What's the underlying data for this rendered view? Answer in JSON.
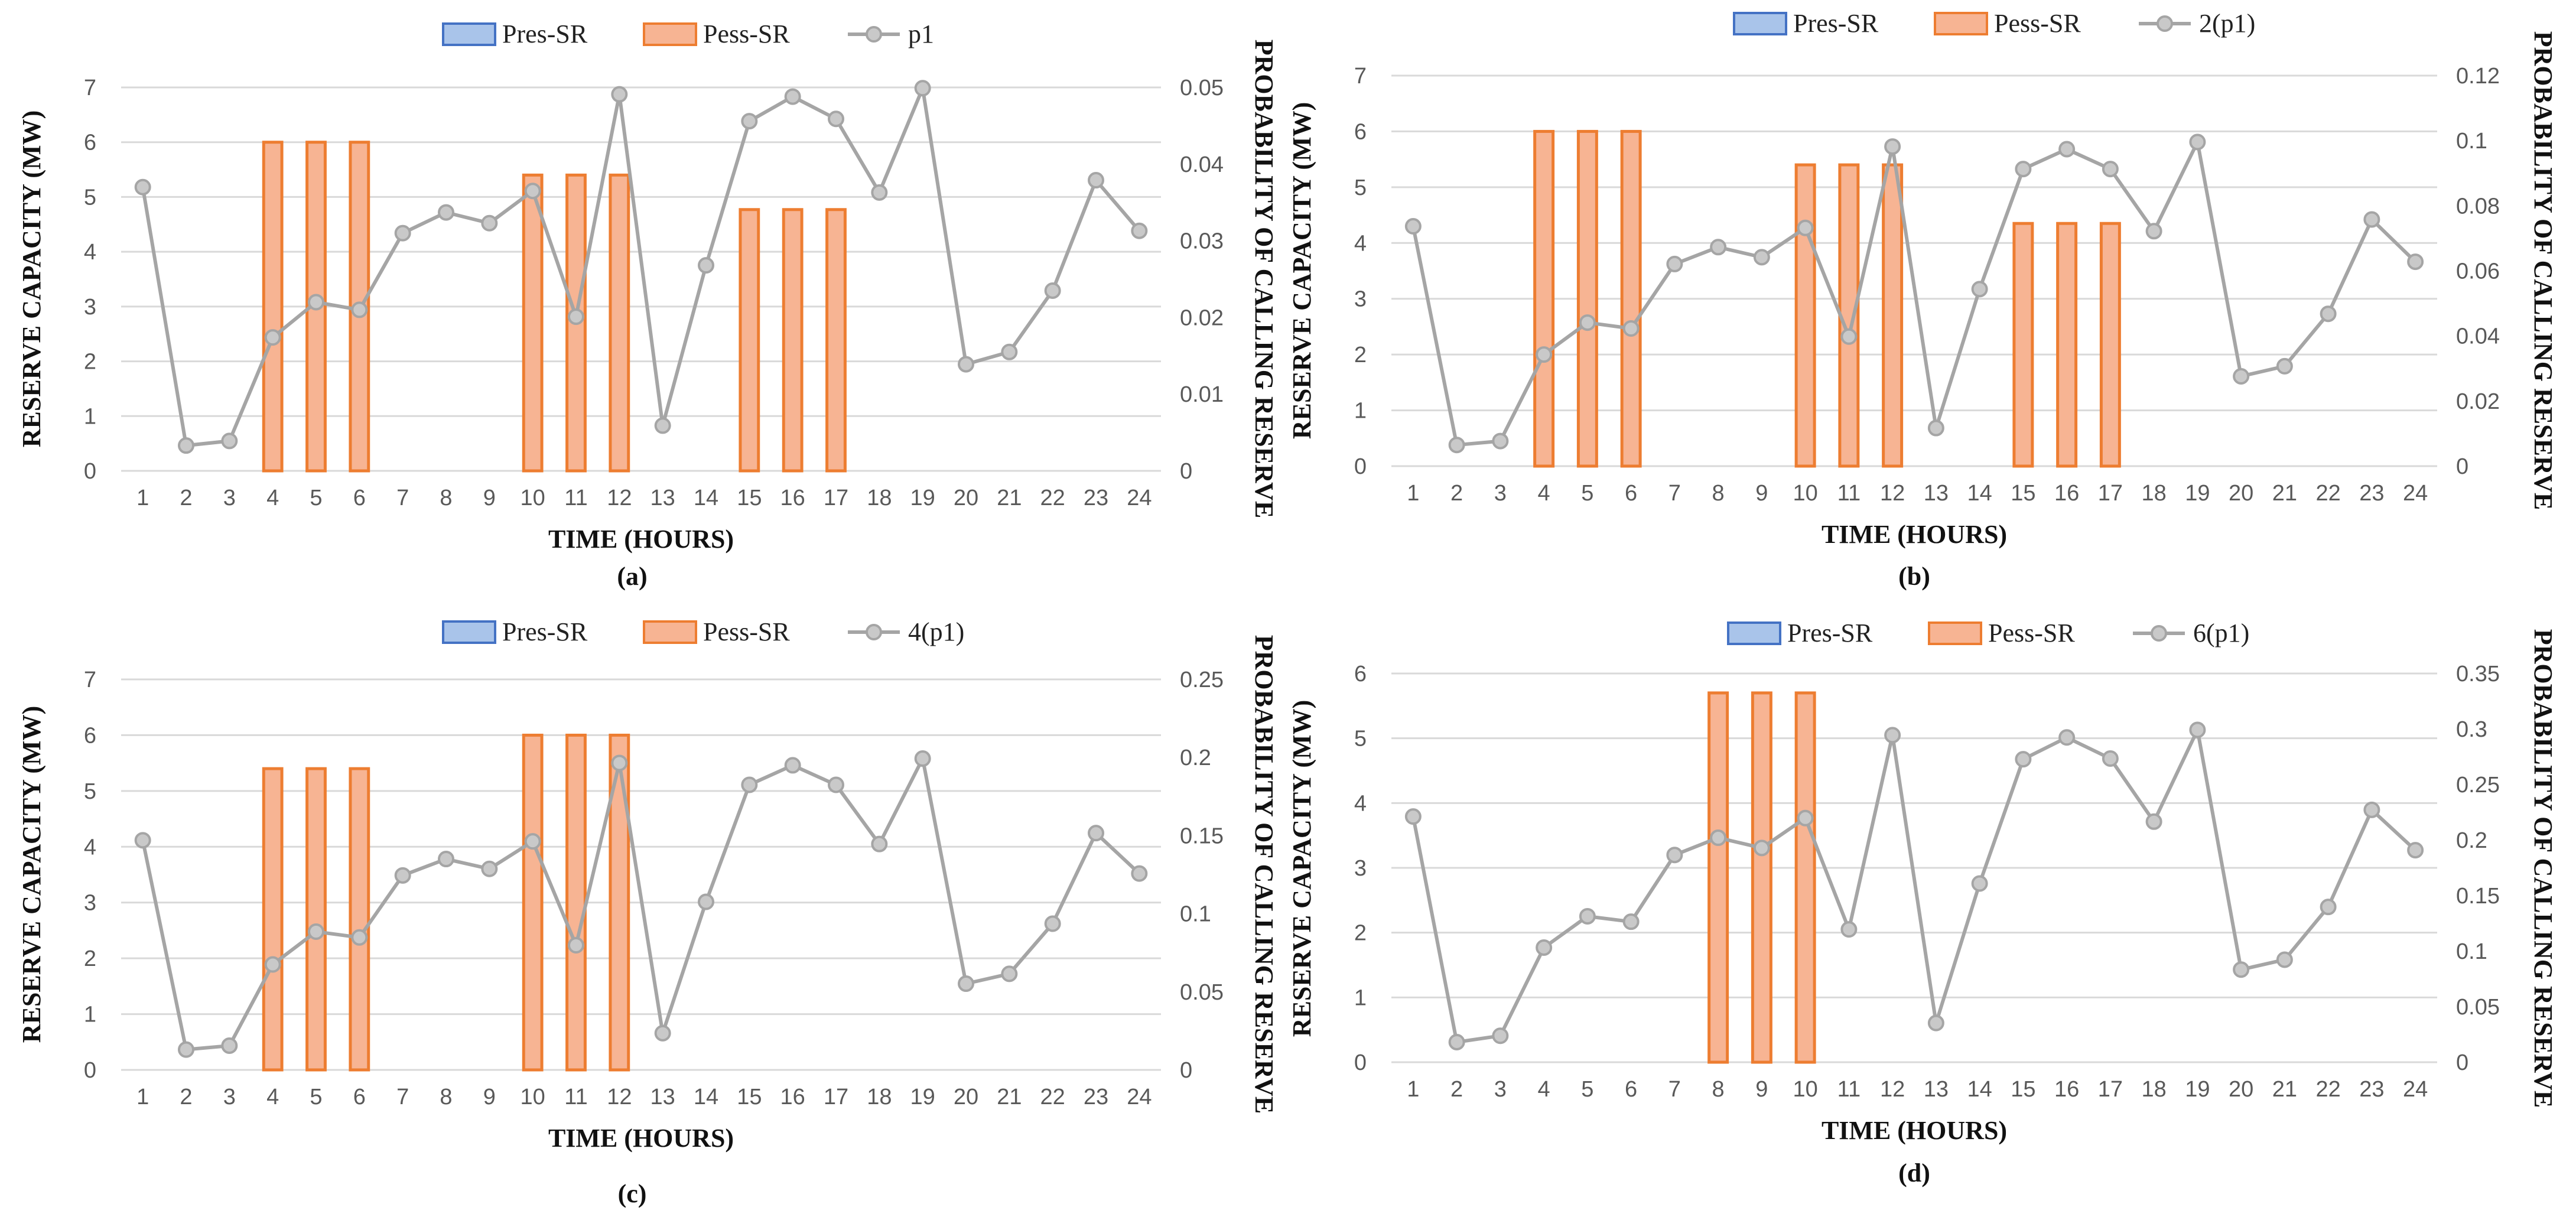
{
  "colors": {
    "bar_fill": "#f7b493",
    "bar_stroke": "#ed7d31",
    "line": "#a5a5a5",
    "marker_fill": "#c9c9c9",
    "grid": "#d9d9d9",
    "pres_fill": "#a9c4ea",
    "pres_stroke": "#4472c4"
  },
  "chart_data": [
    {
      "type": "bar",
      "panel_label": "(a)",
      "xlabel": "TIME (HOURS)",
      "ylabel": "RESERVE CAPACITY (MW)",
      "ylabel_right": "PROBABILITY OF CALLING RESERVE",
      "categories": [
        "1",
        "2",
        "3",
        "4",
        "5",
        "6",
        "7",
        "8",
        "9",
        "10",
        "11",
        "12",
        "13",
        "14",
        "15",
        "16",
        "17",
        "18",
        "19",
        "20",
        "21",
        "22",
        "23",
        "24"
      ],
      "ylim": [
        0,
        7
      ],
      "yticks": [
        "0",
        "1",
        "2",
        "3",
        "4",
        "5",
        "6",
        "7"
      ],
      "y2lim": [
        0,
        0.05
      ],
      "y2ticks": [
        "0",
        "0.01",
        "0.02",
        "0.03",
        "0.04",
        "0.05"
      ],
      "legend": [
        "Pres-SR",
        "Pess-SR",
        "p1"
      ],
      "series": [
        {
          "name": "Pres-SR",
          "axis": "left",
          "type": "bar",
          "values": [
            0,
            0,
            0,
            0,
            0,
            0,
            0,
            0,
            0,
            0,
            0,
            0,
            0,
            0,
            0,
            0,
            0,
            0,
            0,
            0,
            0,
            0,
            0,
            0
          ]
        },
        {
          "name": "Pess-SR",
          "axis": "left",
          "type": "bar",
          "values": [
            0,
            0,
            0,
            6,
            6,
            6,
            0,
            0,
            0,
            5.4,
            5.4,
            5.4,
            0,
            0,
            4.77,
            4.77,
            4.77,
            0,
            0,
            0,
            0,
            0,
            0,
            0
          ]
        },
        {
          "name": "p1",
          "axis": "right",
          "type": "line",
          "values": [
            0.037,
            0.0033,
            0.0039,
            0.0174,
            0.022,
            0.021,
            0.031,
            0.0337,
            0.0323,
            0.0365,
            0.0201,
            0.0491,
            0.0059,
            0.0268,
            0.0456,
            0.0488,
            0.0459,
            0.0363,
            0.0499,
            0.0139,
            0.0155,
            0.0235,
            0.0379,
            0.0313
          ]
        }
      ]
    },
    {
      "type": "bar",
      "panel_label": "(b)",
      "xlabel": "TIME (HOURS)",
      "ylabel": "RESERVE CAPACITY (MW)",
      "ylabel_right": "PROBABILITY OF CALLING RESERVE",
      "categories": [
        "1",
        "2",
        "3",
        "4",
        "5",
        "6",
        "7",
        "8",
        "9",
        "10",
        "11",
        "12",
        "13",
        "14",
        "15",
        "16",
        "17",
        "18",
        "19",
        "20",
        "21",
        "22",
        "23",
        "24"
      ],
      "ylim": [
        0,
        7
      ],
      "yticks": [
        "0",
        "1",
        "2",
        "3",
        "4",
        "5",
        "6",
        "7"
      ],
      "y2lim": [
        0,
        0.12
      ],
      "y2ticks": [
        "0",
        "0.02",
        "0.04",
        "0.06",
        "0.08",
        "0.1",
        "0.12"
      ],
      "legend": [
        "Pres-SR",
        "Pess-SR",
        "2(p1)"
      ],
      "series": [
        {
          "name": "Pres-SR",
          "axis": "left",
          "type": "bar",
          "values": [
            0,
            0,
            0,
            0,
            0,
            0,
            0,
            0,
            0,
            0,
            0,
            0,
            0,
            0,
            0,
            0,
            0,
            0,
            0,
            0,
            0,
            0,
            0,
            0
          ]
        },
        {
          "name": "Pess-SR",
          "axis": "left",
          "type": "bar",
          "values": [
            0,
            0,
            0,
            6,
            6,
            6,
            0,
            0,
            0,
            5.4,
            5.4,
            5.4,
            0,
            0,
            4.35,
            4.35,
            4.35,
            0,
            0,
            0,
            0,
            0,
            0,
            0
          ]
        },
        {
          "name": "2(p1)",
          "axis": "right",
          "type": "line",
          "values": [
            0.0737,
            0.0065,
            0.0077,
            0.0343,
            0.0441,
            0.0423,
            0.0621,
            0.0673,
            0.0642,
            0.0732,
            0.0398,
            0.0982,
            0.0117,
            0.0544,
            0.0913,
            0.0974,
            0.0913,
            0.0722,
            0.0996,
            0.0276,
            0.0307,
            0.0468,
            0.0758,
            0.0628
          ]
        }
      ]
    },
    {
      "type": "bar",
      "panel_label": "(c)",
      "xlabel": "TIME (HOURS)",
      "ylabel": "RESERVE CAPACITY (MW)",
      "ylabel_right": "PROBABILITY OF CALLING RESERVE",
      "categories": [
        "1",
        "2",
        "3",
        "4",
        "5",
        "6",
        "7",
        "8",
        "9",
        "10",
        "11",
        "12",
        "13",
        "14",
        "15",
        "16",
        "17",
        "18",
        "19",
        "20",
        "21",
        "22",
        "23",
        "24"
      ],
      "ylim": [
        0,
        7
      ],
      "yticks": [
        "0",
        "1",
        "2",
        "3",
        "4",
        "5",
        "6",
        "7"
      ],
      "y2lim": [
        0,
        0.25
      ],
      "y2ticks": [
        "0",
        "0.05",
        "0.1",
        "0.15",
        "0.2",
        "0.25"
      ],
      "legend": [
        "Pres-SR",
        "Pess-SR",
        "4(p1)"
      ],
      "series": [
        {
          "name": "Pres-SR",
          "axis": "left",
          "type": "bar",
          "values": [
            0,
            0,
            0,
            0,
            0,
            0,
            0,
            0,
            0,
            0,
            0,
            0,
            0,
            0,
            0,
            0,
            0,
            0,
            0,
            0,
            0,
            0,
            0,
            0
          ]
        },
        {
          "name": "Pess-SR",
          "axis": "left",
          "type": "bar",
          "values": [
            0,
            0,
            0,
            5.4,
            5.4,
            5.4,
            0,
            0,
            0,
            6,
            6,
            6,
            0,
            0,
            0,
            0,
            0,
            0,
            0,
            0,
            0,
            0,
            0,
            0
          ]
        },
        {
          "name": "4(p1)",
          "axis": "right",
          "type": "line",
          "values": [
            0.147,
            0.013,
            0.0155,
            0.0675,
            0.0885,
            0.0848,
            0.1245,
            0.135,
            0.1287,
            0.1463,
            0.0798,
            0.1965,
            0.0235,
            0.1076,
            0.1825,
            0.195,
            0.1825,
            0.1446,
            0.1993,
            0.0552,
            0.0615,
            0.0936,
            0.1516,
            0.1257
          ]
        }
      ]
    },
    {
      "type": "bar",
      "panel_label": "(d)",
      "xlabel": "TIME (HOURS)",
      "ylabel": "RESERVE CAPACITY (MW)",
      "ylabel_right": "PROBABILITY OF CALLING RESERVE",
      "categories": [
        "1",
        "2",
        "3",
        "4",
        "5",
        "6",
        "7",
        "8",
        "9",
        "10",
        "11",
        "12",
        "13",
        "14",
        "15",
        "16",
        "17",
        "18",
        "19",
        "20",
        "21",
        "22",
        "23",
        "24"
      ],
      "ylim": [
        0,
        6
      ],
      "yticks": [
        "0",
        "1",
        "2",
        "3",
        "4",
        "5",
        "6"
      ],
      "y2lim": [
        0,
        0.35
      ],
      "y2ticks": [
        "0",
        "0.05",
        "0.1",
        "0.15",
        "0.2",
        "0.25",
        "0.3",
        "0.35"
      ],
      "legend": [
        "Pres-SR",
        "Pess-SR",
        "6(p1)"
      ],
      "series": [
        {
          "name": "Pres-SR",
          "axis": "left",
          "type": "bar",
          "values": [
            0,
            0,
            0,
            0,
            0,
            0,
            0,
            0,
            0,
            0,
            0,
            0,
            0,
            0,
            0,
            0,
            0,
            0,
            0,
            0,
            0,
            0,
            0,
            0
          ]
        },
        {
          "name": "Pess-SR",
          "axis": "left",
          "type": "bar",
          "values": [
            0,
            0,
            0,
            0,
            0,
            0,
            0,
            5.7,
            5.7,
            5.7,
            0,
            0,
            0,
            0,
            0,
            0,
            0,
            0,
            0,
            0,
            0,
            0,
            0,
            0
          ]
        },
        {
          "name": "6(p1)",
          "axis": "right",
          "type": "line",
          "values": [
            0.2212,
            0.0181,
            0.0238,
            0.1032,
            0.1314,
            0.1265,
            0.1866,
            0.2021,
            0.1929,
            0.2198,
            0.1196,
            0.2945,
            0.0353,
            0.1609,
            0.2728,
            0.2924,
            0.2734,
            0.2166,
            0.2992,
            0.0834,
            0.0923,
            0.1398,
            0.2272,
            0.1909
          ]
        }
      ]
    }
  ]
}
